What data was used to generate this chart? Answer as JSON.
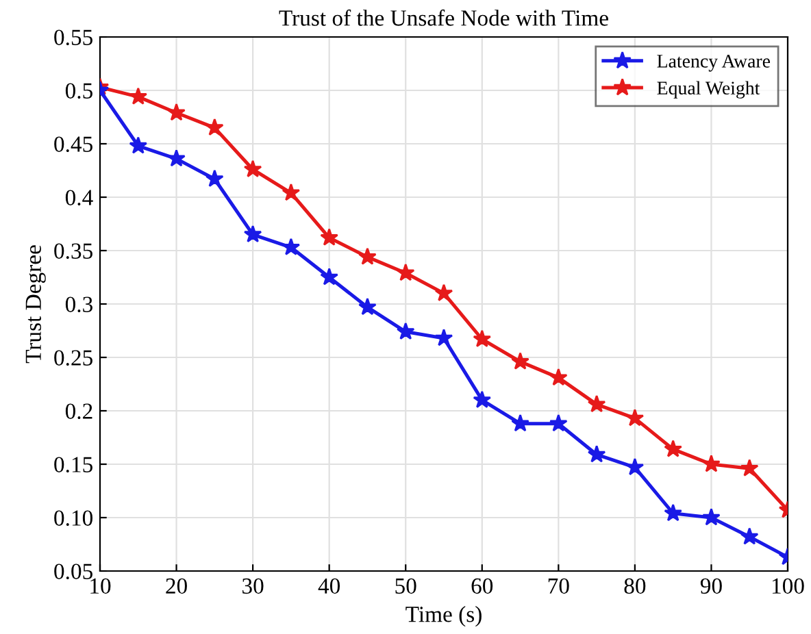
{
  "chart_data": {
    "type": "line",
    "title": "Trust of the Unsafe Node with Time",
    "xlabel": "Time (s)",
    "ylabel": "Trust Degree",
    "x": [
      10,
      15,
      20,
      25,
      30,
      35,
      40,
      45,
      50,
      55,
      60,
      65,
      70,
      75,
      80,
      85,
      90,
      95,
      100
    ],
    "series": [
      {
        "name": "Latency Aware",
        "color": "#1a1ae6",
        "values": [
          0.5,
          0.448,
          0.436,
          0.417,
          0.365,
          0.353,
          0.325,
          0.297,
          0.274,
          0.268,
          0.21,
          0.188,
          0.188,
          0.159,
          0.147,
          0.104,
          0.1,
          0.082,
          0.063
        ]
      },
      {
        "name": "Equal Weight",
        "color": "#e61a1a",
        "values": [
          0.503,
          0.494,
          0.479,
          0.465,
          0.426,
          0.404,
          0.362,
          0.344,
          0.329,
          0.31,
          0.267,
          0.246,
          0.231,
          0.206,
          0.193,
          0.164,
          0.15,
          0.146,
          0.107
        ]
      }
    ],
    "xlim": [
      10,
      100
    ],
    "xticks": [
      10,
      20,
      30,
      40,
      50,
      60,
      70,
      80,
      90,
      100
    ],
    "ylim": [
      0.05,
      0.55
    ],
    "yticks": [
      {
        "value": 0.05,
        "label": "0.05"
      },
      {
        "value": 0.1,
        "label": "0.10"
      },
      0.15,
      0.2,
      0.25,
      0.3,
      0.35,
      0.4,
      0.45,
      0.5,
      0.55
    ],
    "grid": true,
    "legend": "top right",
    "marker": "star",
    "line_style": "solid"
  }
}
